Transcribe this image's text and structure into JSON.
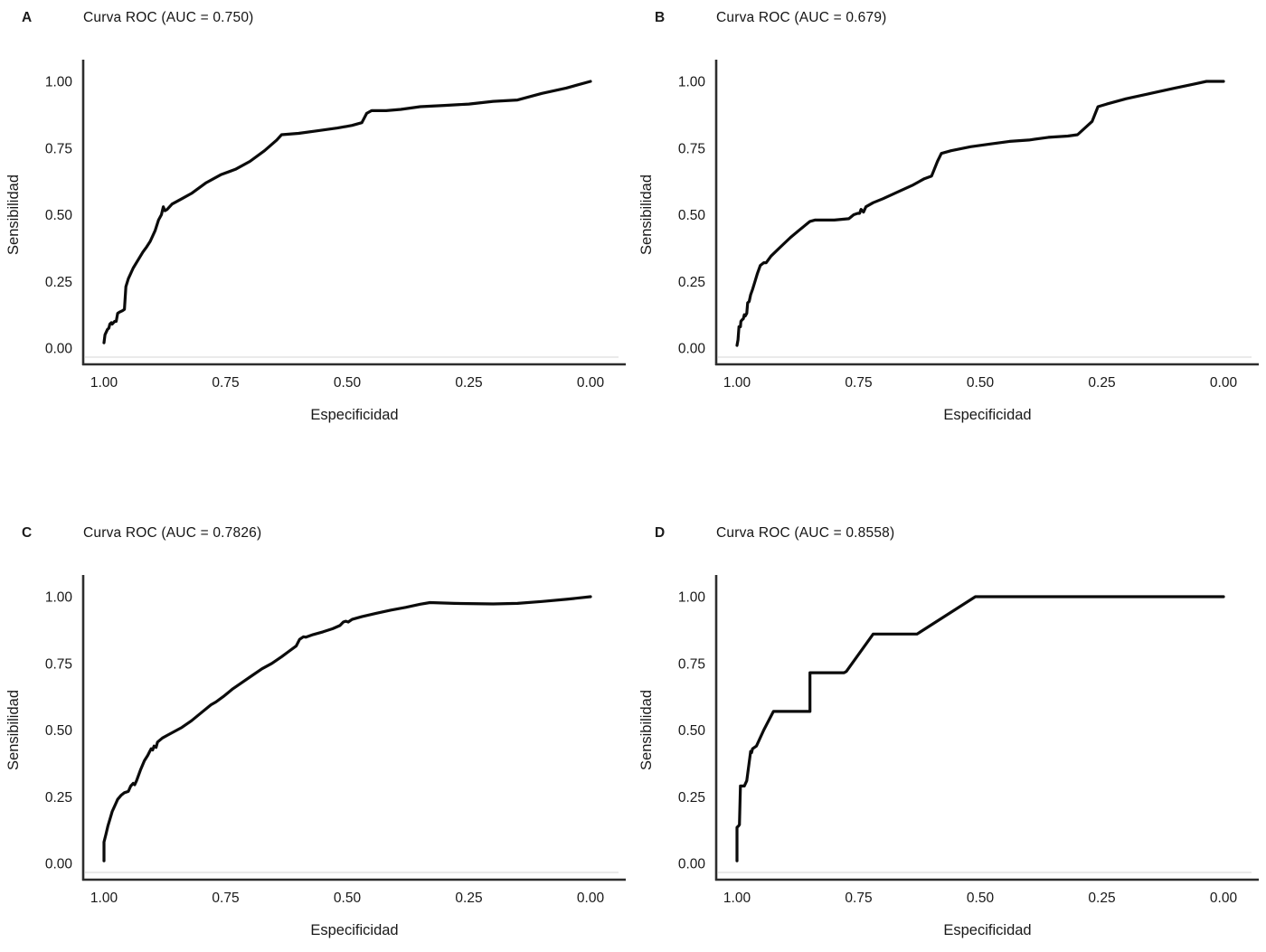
{
  "page": {
    "background": "#ffffff",
    "text_color": "#181818",
    "curve_color": "#0b0b0b",
    "axis_color": "#2d2d2d"
  },
  "chart_data": [
    {
      "type": "line",
      "panel_label": "A",
      "title": "Curva ROC (AUC = 0.750)",
      "auc": "0.750",
      "xlabel": "Especificidad",
      "ylabel": "Sensibilidad",
      "x_ticks": [
        "1.00",
        "0.75",
        "0.50",
        "0.25",
        "0.00"
      ],
      "y_ticks": [
        "0.00",
        "0.25",
        "0.50",
        "0.75",
        "1.00"
      ],
      "x_axis_reversed": true,
      "xlim": [
        1.0,
        0.0
      ],
      "ylim": [
        0.0,
        1.0
      ],
      "grid": false,
      "legend": "none",
      "line_color": "#0b0b0b",
      "point_format": "[especificidad, sensibilidad]",
      "points": [
        [
          1.0,
          0.02
        ],
        [
          0.998,
          0.05
        ],
        [
          0.993,
          0.07
        ],
        [
          0.99,
          0.075
        ],
        [
          0.988,
          0.09
        ],
        [
          0.985,
          0.095
        ],
        [
          0.983,
          0.09
        ],
        [
          0.978,
          0.1
        ],
        [
          0.975,
          0.1
        ],
        [
          0.972,
          0.13
        ],
        [
          0.968,
          0.135
        ],
        [
          0.962,
          0.14
        ],
        [
          0.958,
          0.145
        ],
        [
          0.955,
          0.23
        ],
        [
          0.95,
          0.26
        ],
        [
          0.94,
          0.3
        ],
        [
          0.93,
          0.33
        ],
        [
          0.92,
          0.36
        ],
        [
          0.912,
          0.38
        ],
        [
          0.905,
          0.4
        ],
        [
          0.895,
          0.44
        ],
        [
          0.888,
          0.48
        ],
        [
          0.882,
          0.5
        ],
        [
          0.878,
          0.53
        ],
        [
          0.875,
          0.515
        ],
        [
          0.87,
          0.52
        ],
        [
          0.86,
          0.54
        ],
        [
          0.84,
          0.56
        ],
        [
          0.82,
          0.58
        ],
        [
          0.79,
          0.62
        ],
        [
          0.76,
          0.65
        ],
        [
          0.73,
          0.67
        ],
        [
          0.7,
          0.7
        ],
        [
          0.67,
          0.74
        ],
        [
          0.645,
          0.78
        ],
        [
          0.635,
          0.8
        ],
        [
          0.6,
          0.805
        ],
        [
          0.56,
          0.815
        ],
        [
          0.52,
          0.825
        ],
        [
          0.49,
          0.835
        ],
        [
          0.47,
          0.845
        ],
        [
          0.46,
          0.88
        ],
        [
          0.45,
          0.89
        ],
        [
          0.42,
          0.89
        ],
        [
          0.39,
          0.895
        ],
        [
          0.35,
          0.905
        ],
        [
          0.3,
          0.91
        ],
        [
          0.25,
          0.915
        ],
        [
          0.2,
          0.925
        ],
        [
          0.15,
          0.93
        ],
        [
          0.1,
          0.955
        ],
        [
          0.05,
          0.975
        ],
        [
          0.0,
          1.0
        ]
      ]
    },
    {
      "type": "line",
      "panel_label": "B",
      "title": "Curva ROC (AUC = 0.679)",
      "auc": "0.679",
      "xlabel": "Especificidad",
      "ylabel": "Sensibilidad",
      "x_ticks": [
        "1.00",
        "0.75",
        "0.50",
        "0.25",
        "0.00"
      ],
      "y_ticks": [
        "0.00",
        "0.25",
        "0.50",
        "0.75",
        "1.00"
      ],
      "x_axis_reversed": true,
      "xlim": [
        1.0,
        0.0
      ],
      "ylim": [
        0.0,
        1.0
      ],
      "grid": false,
      "legend": "none",
      "line_color": "#0b0b0b",
      "point_format": "[especificidad, sensibilidad]",
      "points": [
        [
          1.0,
          0.01
        ],
        [
          0.998,
          0.03
        ],
        [
          0.996,
          0.08
        ],
        [
          0.993,
          0.08
        ],
        [
          0.992,
          0.1
        ],
        [
          0.99,
          0.105
        ],
        [
          0.987,
          0.11
        ],
        [
          0.985,
          0.125
        ],
        [
          0.983,
          0.12
        ],
        [
          0.98,
          0.13
        ],
        [
          0.978,
          0.17
        ],
        [
          0.975,
          0.175
        ],
        [
          0.972,
          0.2
        ],
        [
          0.968,
          0.22
        ],
        [
          0.963,
          0.25
        ],
        [
          0.958,
          0.28
        ],
        [
          0.952,
          0.31
        ],
        [
          0.945,
          0.32
        ],
        [
          0.94,
          0.32
        ],
        [
          0.93,
          0.345
        ],
        [
          0.91,
          0.38
        ],
        [
          0.89,
          0.415
        ],
        [
          0.87,
          0.445
        ],
        [
          0.85,
          0.475
        ],
        [
          0.84,
          0.48
        ],
        [
          0.8,
          0.48
        ],
        [
          0.77,
          0.485
        ],
        [
          0.76,
          0.5
        ],
        [
          0.752,
          0.505
        ],
        [
          0.748,
          0.505
        ],
        [
          0.745,
          0.52
        ],
        [
          0.74,
          0.51
        ],
        [
          0.735,
          0.53
        ],
        [
          0.72,
          0.545
        ],
        [
          0.7,
          0.56
        ],
        [
          0.67,
          0.585
        ],
        [
          0.64,
          0.61
        ],
        [
          0.615,
          0.635
        ],
        [
          0.6,
          0.645
        ],
        [
          0.588,
          0.7
        ],
        [
          0.58,
          0.73
        ],
        [
          0.56,
          0.74
        ],
        [
          0.52,
          0.755
        ],
        [
          0.48,
          0.765
        ],
        [
          0.44,
          0.775
        ],
        [
          0.4,
          0.78
        ],
        [
          0.36,
          0.79
        ],
        [
          0.32,
          0.795
        ],
        [
          0.3,
          0.8
        ],
        [
          0.27,
          0.85
        ],
        [
          0.258,
          0.905
        ],
        [
          0.24,
          0.915
        ],
        [
          0.2,
          0.935
        ],
        [
          0.15,
          0.955
        ],
        [
          0.1,
          0.975
        ],
        [
          0.06,
          0.99
        ],
        [
          0.035,
          1.0
        ],
        [
          0.0,
          1.0
        ]
      ]
    },
    {
      "type": "line",
      "panel_label": "C",
      "title": "Curva ROC (AUC = 0.7826)",
      "auc": "0.7826",
      "xlabel": "Especificidad",
      "ylabel": "Sensibilidad",
      "x_ticks": [
        "1.00",
        "0.75",
        "0.50",
        "0.25",
        "0.00"
      ],
      "y_ticks": [
        "0.00",
        "0.25",
        "0.50",
        "0.75",
        "1.00"
      ],
      "x_axis_reversed": true,
      "xlim": [
        1.0,
        0.0
      ],
      "ylim": [
        0.0,
        1.0
      ],
      "grid": false,
      "legend": "none",
      "line_color": "#0b0b0b",
      "point_format": "[especificidad, sensibilidad]",
      "points": [
        [
          1.0,
          0.01
        ],
        [
          1.0,
          0.08
        ],
        [
          0.996,
          0.11
        ],
        [
          0.992,
          0.14
        ],
        [
          0.988,
          0.165
        ],
        [
          0.983,
          0.195
        ],
        [
          0.978,
          0.215
        ],
        [
          0.972,
          0.24
        ],
        [
          0.965,
          0.255
        ],
        [
          0.958,
          0.265
        ],
        [
          0.95,
          0.27
        ],
        [
          0.945,
          0.29
        ],
        [
          0.94,
          0.3
        ],
        [
          0.937,
          0.295
        ],
        [
          0.933,
          0.31
        ],
        [
          0.925,
          0.35
        ],
        [
          0.917,
          0.385
        ],
        [
          0.91,
          0.405
        ],
        [
          0.906,
          0.42
        ],
        [
          0.903,
          0.43
        ],
        [
          0.9,
          0.425
        ],
        [
          0.897,
          0.44
        ],
        [
          0.893,
          0.435
        ],
        [
          0.89,
          0.455
        ],
        [
          0.88,
          0.47
        ],
        [
          0.87,
          0.48
        ],
        [
          0.855,
          0.495
        ],
        [
          0.84,
          0.51
        ],
        [
          0.82,
          0.535
        ],
        [
          0.8,
          0.565
        ],
        [
          0.78,
          0.595
        ],
        [
          0.77,
          0.605
        ],
        [
          0.755,
          0.625
        ],
        [
          0.735,
          0.655
        ],
        [
          0.715,
          0.68
        ],
        [
          0.695,
          0.705
        ],
        [
          0.675,
          0.73
        ],
        [
          0.655,
          0.75
        ],
        [
          0.635,
          0.775
        ],
        [
          0.62,
          0.795
        ],
        [
          0.605,
          0.815
        ],
        [
          0.598,
          0.84
        ],
        [
          0.59,
          0.85
        ],
        [
          0.585,
          0.848
        ],
        [
          0.57,
          0.858
        ],
        [
          0.55,
          0.868
        ],
        [
          0.53,
          0.88
        ],
        [
          0.515,
          0.892
        ],
        [
          0.508,
          0.905
        ],
        [
          0.503,
          0.908
        ],
        [
          0.498,
          0.905
        ],
        [
          0.49,
          0.915
        ],
        [
          0.47,
          0.925
        ],
        [
          0.44,
          0.938
        ],
        [
          0.41,
          0.95
        ],
        [
          0.38,
          0.96
        ],
        [
          0.35,
          0.972
        ],
        [
          0.33,
          0.978
        ],
        [
          0.28,
          0.975
        ],
        [
          0.2,
          0.973
        ],
        [
          0.15,
          0.975
        ],
        [
          0.1,
          0.982
        ],
        [
          0.05,
          0.99
        ],
        [
          0.0,
          1.0
        ]
      ]
    },
    {
      "type": "line",
      "panel_label": "D",
      "title": "Curva ROC (AUC = 0.8558)",
      "auc": "0.8558",
      "xlabel": "Especificidad",
      "ylabel": "Sensibilidad",
      "x_ticks": [
        "1.00",
        "0.75",
        "0.50",
        "0.25",
        "0.00"
      ],
      "y_ticks": [
        "0.00",
        "0.25",
        "0.50",
        "0.75",
        "1.00"
      ],
      "x_axis_reversed": true,
      "xlim": [
        1.0,
        0.0
      ],
      "ylim": [
        0.0,
        1.0
      ],
      "grid": false,
      "legend": "none",
      "line_color": "#0b0b0b",
      "point_format": "[especificidad, sensibilidad]",
      "points": [
        [
          1.0,
          0.01
        ],
        [
          1.0,
          0.135
        ],
        [
          0.997,
          0.14
        ],
        [
          0.995,
          0.145
        ],
        [
          0.993,
          0.29
        ],
        [
          0.985,
          0.29
        ],
        [
          0.98,
          0.31
        ],
        [
          0.972,
          0.42
        ],
        [
          0.97,
          0.415
        ],
        [
          0.968,
          0.43
        ],
        [
          0.96,
          0.44
        ],
        [
          0.945,
          0.5
        ],
        [
          0.925,
          0.57
        ],
        [
          0.85,
          0.57
        ],
        [
          0.85,
          0.715
        ],
        [
          0.78,
          0.715
        ],
        [
          0.775,
          0.72
        ],
        [
          0.72,
          0.86
        ],
        [
          0.63,
          0.86
        ],
        [
          0.51,
          1.0
        ],
        [
          0.0,
          1.0
        ]
      ]
    }
  ]
}
